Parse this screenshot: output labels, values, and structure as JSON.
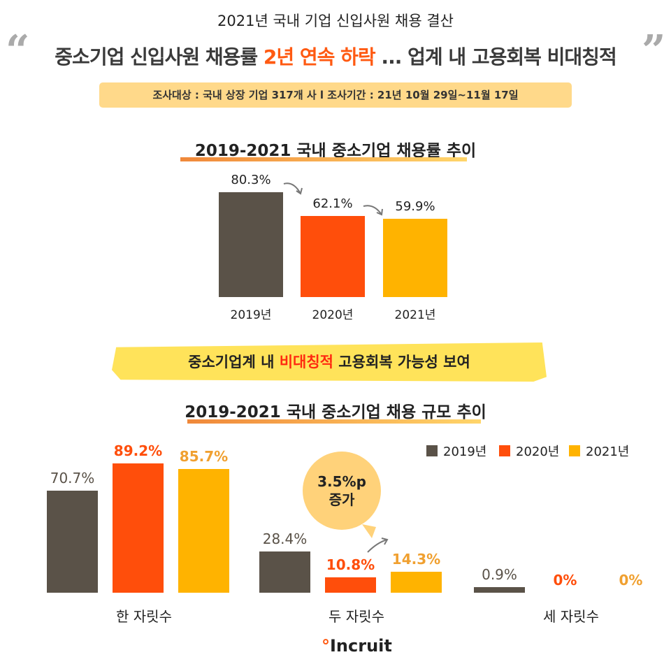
{
  "header": {
    "supertitle": "2021년 국내 기업 신입사원 채용 결산",
    "headline_pre": "중소기업 신입사원 채용률 ",
    "headline_highlight": "2년 연속 하락",
    "headline_post": " ... 업계 내 고용회복 비대칭적",
    "open_quote": "“",
    "close_quote": "”",
    "survey": "조사대상 : 국내 상장 기업 317개 사 l  조사기간 : 21년 10월 29일~11월 17일"
  },
  "banner": {
    "pre": "중소기업계 내 ",
    "highlight": "비대칭적",
    "post": " 고용회복 가능성 보여"
  },
  "callout": {
    "line1": "3.5%p",
    "line2": "증가"
  },
  "logo": "Incruit",
  "colors": {
    "2019": "#5a5248",
    "2020": "#ff4e0b",
    "2021": "#ffb300",
    "accent": "#ff5a12"
  },
  "chart_data": [
    {
      "type": "bar",
      "title": "2019-2021 국내 중소기업 채용률 추이",
      "categories": [
        "2019년",
        "2020년",
        "2021년"
      ],
      "values": [
        80.3,
        62.1,
        59.9
      ],
      "labels": [
        "80.3%",
        "62.1%",
        "59.9%"
      ],
      "ylim": [
        0,
        100
      ]
    },
    {
      "type": "bar",
      "title": "2019-2021 국내 중소기업 채용 규모 추이",
      "categories": [
        "한 자릿수",
        "두 자릿수",
        "세 자릿수"
      ],
      "legend": "top-right",
      "series": [
        {
          "name": "2019년",
          "values": [
            70.7,
            28.4,
            0.9
          ],
          "labels": [
            "70.7%",
            "28.4%",
            "0.9%"
          ]
        },
        {
          "name": "2020년",
          "values": [
            89.2,
            10.8,
            0
          ],
          "labels": [
            "89.2%",
            "10.8%",
            "0%"
          ]
        },
        {
          "name": "2021년",
          "values": [
            85.7,
            14.3,
            0
          ],
          "labels": [
            "85.7%",
            "14.3%",
            "0%"
          ]
        }
      ],
      "ylim": [
        0,
        100
      ]
    }
  ]
}
